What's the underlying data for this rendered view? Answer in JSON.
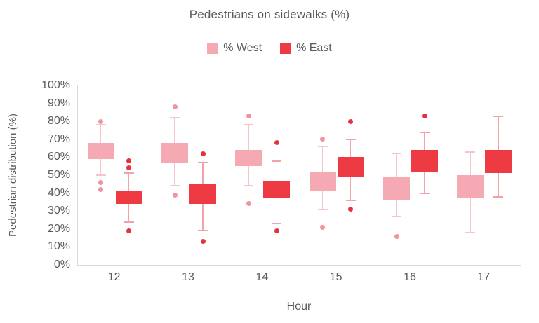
{
  "title": "Pedestrians on sidewalks (%)",
  "colors": {
    "text": "#595959",
    "axis_line": "#D9D9D9",
    "background": "#FFFFFF"
  },
  "chart_data": {
    "type": "box",
    "title": "Pedestrians on sidewalks (%)",
    "xlabel": "Hour",
    "ylabel": "Pedestrian distribution (%)",
    "categories": [
      "12",
      "13",
      "14",
      "15",
      "16",
      "17"
    ],
    "ylim": [
      0,
      100
    ],
    "y_ticks": [
      "0%",
      "10%",
      "20%",
      "30%",
      "40%",
      "50%",
      "60%",
      "70%",
      "80%",
      "90%",
      "100%"
    ],
    "grid": false,
    "legend_position": "top",
    "series": [
      {
        "name": "% West",
        "box_color": "#F5A9B2",
        "whisker_color": "#F4C6CC",
        "outlier_color": "#F2939F",
        "boxes": [
          {
            "category": "12",
            "whisker_low": 50,
            "q1": 59,
            "q3": 68,
            "whisker_high": 78,
            "outliers": [
              42,
              46,
              80
            ]
          },
          {
            "category": "13",
            "whisker_low": 44,
            "q1": 57,
            "q3": 68,
            "whisker_high": 82,
            "outliers": [
              39,
              88
            ]
          },
          {
            "category": "14",
            "whisker_low": 44,
            "q1": 55,
            "q3": 64,
            "whisker_high": 78,
            "outliers": [
              34,
              83
            ]
          },
          {
            "category": "15",
            "whisker_low": 31,
            "q1": 41,
            "q3": 52,
            "whisker_high": 66,
            "outliers": [
              21,
              70
            ]
          },
          {
            "category": "16",
            "whisker_low": 27,
            "q1": 36,
            "q3": 49,
            "whisker_high": 62,
            "outliers": [
              16
            ]
          },
          {
            "category": "17",
            "whisker_low": 18,
            "q1": 37,
            "q3": 50,
            "whisker_high": 63,
            "outliers": []
          }
        ]
      },
      {
        "name": "% East",
        "box_color": "#EE3A42",
        "whisker_color": "#F2A2A8",
        "outlier_color": "#E8323B",
        "boxes": [
          {
            "category": "12",
            "whisker_low": 24,
            "q1": 34,
            "q3": 41,
            "whisker_high": 51,
            "outliers": [
              19,
              54,
              58
            ]
          },
          {
            "category": "13",
            "whisker_low": 19,
            "q1": 34,
            "q3": 45,
            "whisker_high": 57,
            "outliers": [
              13,
              62
            ]
          },
          {
            "category": "14",
            "whisker_low": 23,
            "q1": 37,
            "q3": 47,
            "whisker_high": 58,
            "outliers": [
              19,
              68
            ]
          },
          {
            "category": "15",
            "whisker_low": 36,
            "q1": 49,
            "q3": 60,
            "whisker_high": 70,
            "outliers": [
              31,
              80
            ]
          },
          {
            "category": "16",
            "whisker_low": 40,
            "q1": 52,
            "q3": 64,
            "whisker_high": 74,
            "outliers": [
              83
            ]
          },
          {
            "category": "17",
            "whisker_low": 38,
            "q1": 51,
            "q3": 64,
            "whisker_high": 83,
            "outliers": []
          }
        ]
      }
    ]
  }
}
